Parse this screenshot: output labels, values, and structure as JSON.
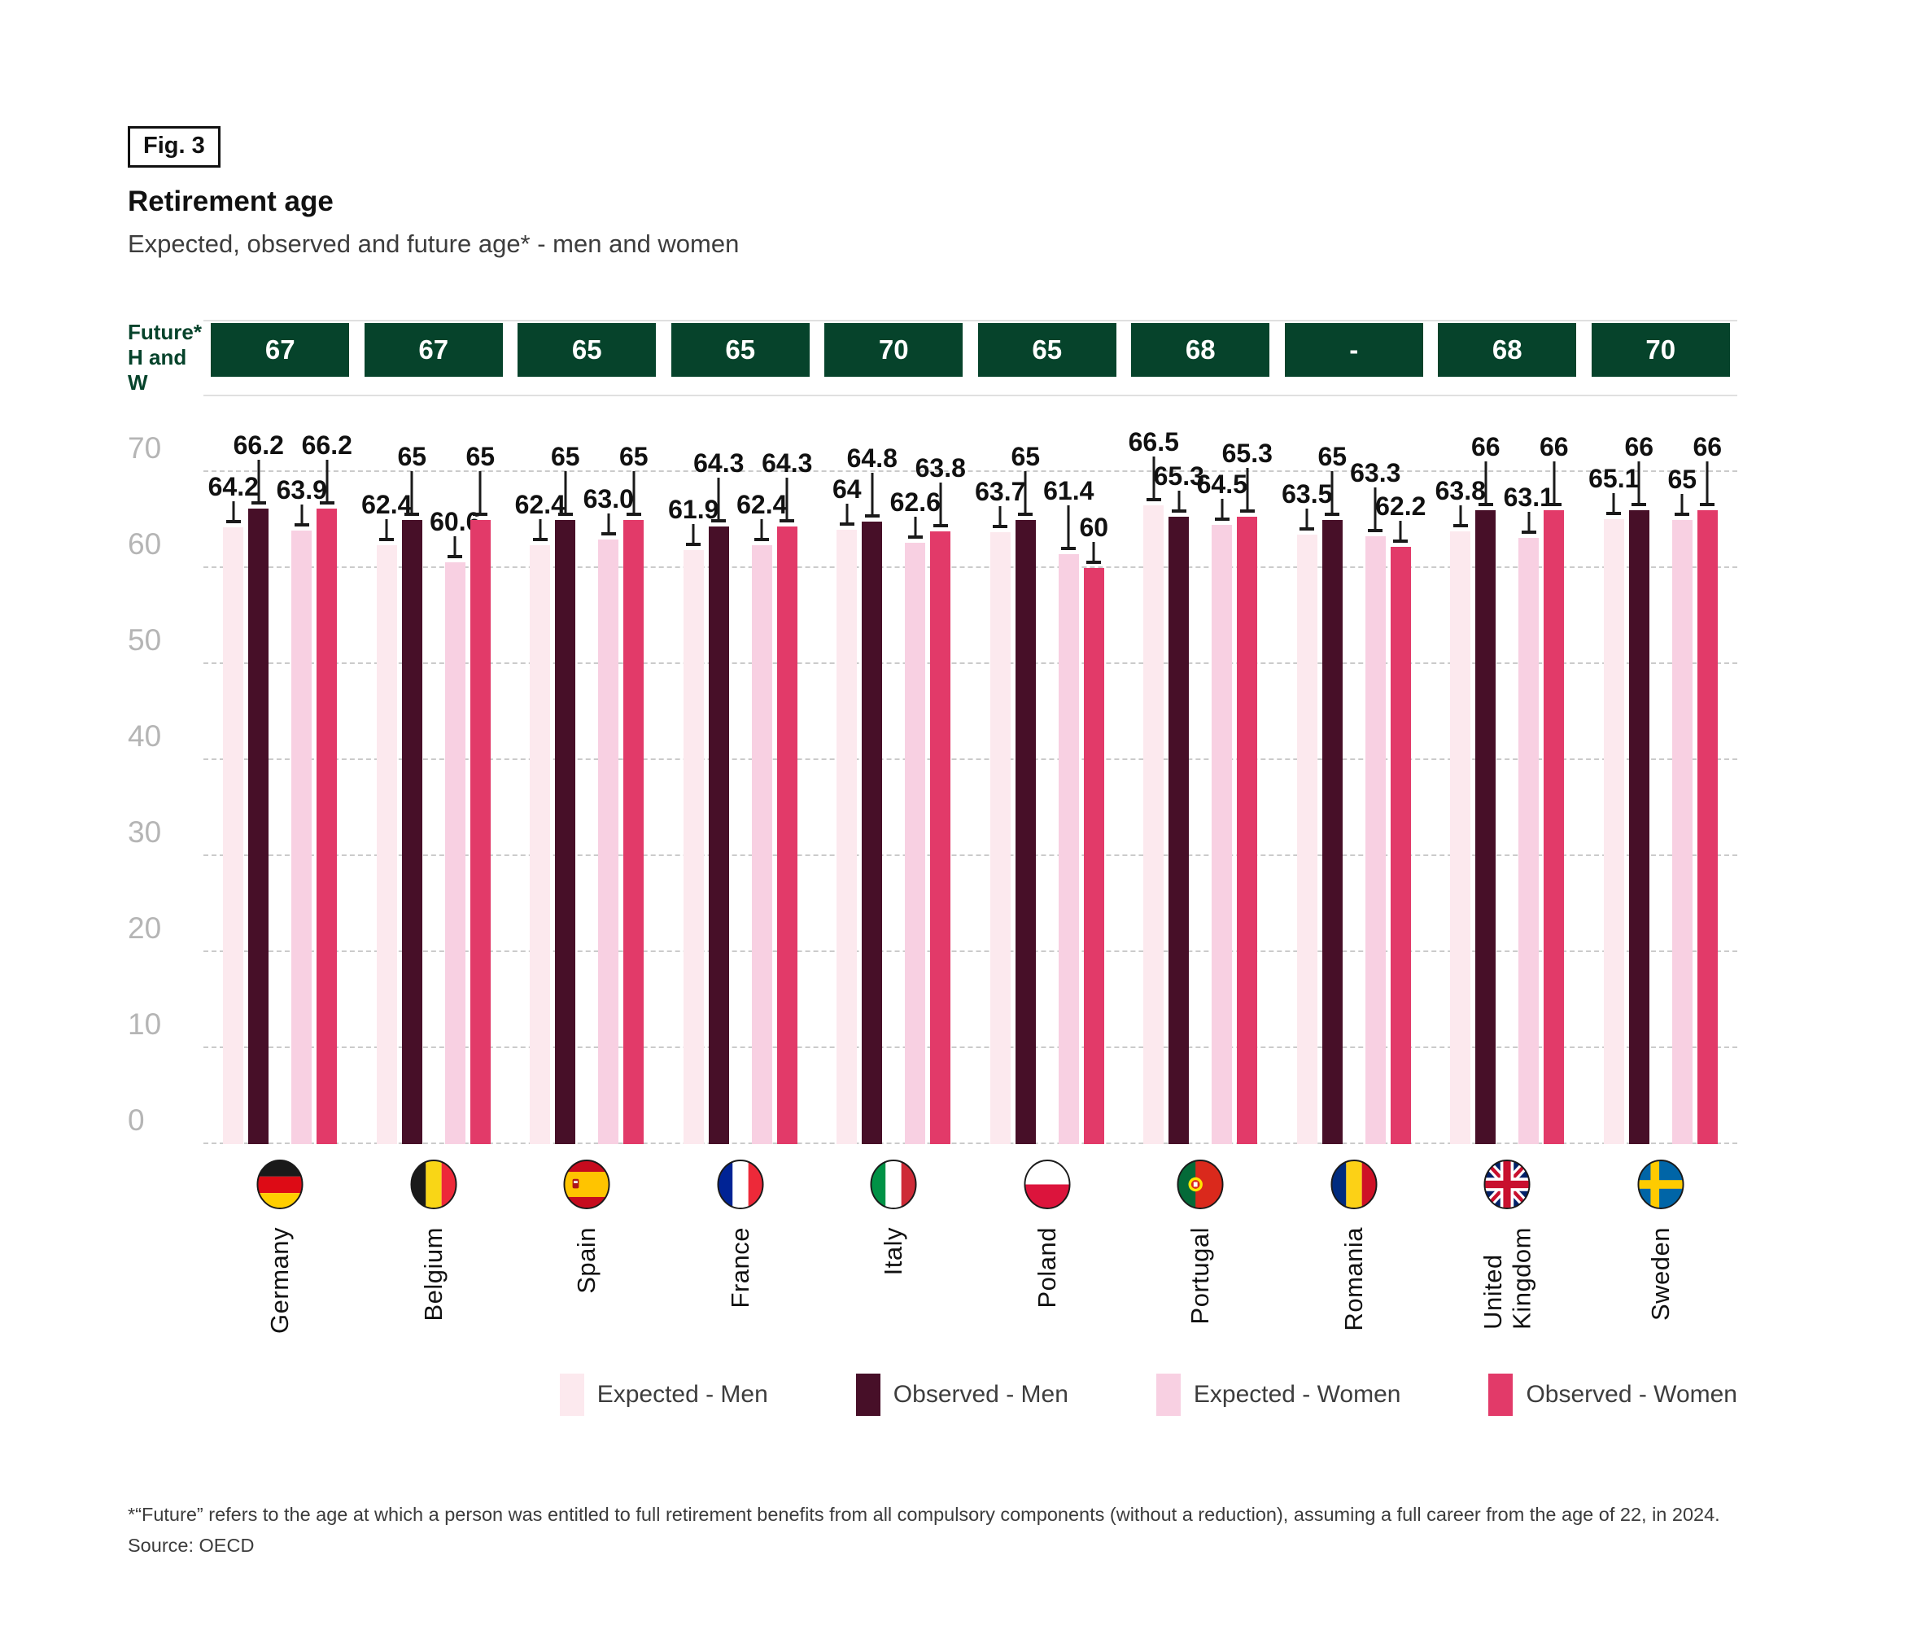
{
  "figure": {
    "tag": "Fig. 3",
    "title": "Retirement age",
    "subtitle": "Expected, observed and future age* - men and women"
  },
  "future_row": {
    "label_line1": "Future*",
    "label_line2": "H and W",
    "box_color": "#06432b",
    "values": [
      "67",
      "67",
      "65",
      "65",
      "70",
      "65",
      "68",
      "-",
      "68",
      "70"
    ]
  },
  "chart_data": {
    "type": "bar",
    "title": "Retirement age",
    "subtitle": "Expected, observed and future age* - men and women",
    "xlabel": "",
    "ylabel": "",
    "ylim": [
      0,
      70
    ],
    "yticks": [
      0,
      10,
      20,
      30,
      40,
      50,
      60,
      70
    ],
    "grid": "horizontal-dashed",
    "legend_position": "bottom",
    "categories": [
      "Germany",
      "Belgium",
      "Spain",
      "France",
      "Italy",
      "Poland",
      "Portugal",
      "Romania",
      "United Kingdom",
      "Sweden"
    ],
    "future_h_and_w": [
      "67",
      "67",
      "65",
      "65",
      "70",
      "65",
      "68",
      "-",
      "68",
      "70"
    ],
    "series": [
      {
        "name": "Expected - Men",
        "color": "#fce9ee",
        "values": [
          64.2,
          62.4,
          62.4,
          61.9,
          64,
          63.7,
          66.5,
          63.5,
          63.8,
          65.1
        ],
        "labels": [
          "64.2",
          "62.4",
          "62.4",
          "61.9",
          "64",
          "63.7",
          "66.5",
          "63.5",
          "63.8",
          "65.1"
        ]
      },
      {
        "name": "Observed - Men",
        "color": "#470f28",
        "values": [
          66.2,
          65,
          65,
          64.3,
          64.8,
          65,
          65.3,
          65,
          66,
          66
        ],
        "labels": [
          "66.2",
          "65",
          "65",
          "64.3",
          "64.8",
          "65",
          "65.3",
          "65",
          "66",
          "66"
        ]
      },
      {
        "name": "Expected - Women",
        "color": "#f8d0e2",
        "values": [
          63.9,
          60.6,
          63.0,
          62.4,
          62.6,
          61.4,
          64.5,
          63.3,
          63.1,
          65
        ],
        "labels": [
          "63.9",
          "60.6",
          "63.0",
          "62.4",
          "62.6",
          "61.4",
          "64.5",
          "63.3",
          "63.1",
          "65"
        ]
      },
      {
        "name": "Observed - Women",
        "color": "#e23a69",
        "values": [
          66.2,
          65,
          65,
          64.3,
          63.8,
          60,
          65.3,
          62.2,
          66,
          66
        ],
        "labels": [
          "66.2",
          "65",
          "65",
          "64.3",
          "63.8",
          "60",
          "65.3",
          "62.2",
          "66",
          "66"
        ]
      }
    ]
  },
  "countries": [
    {
      "label": "Germany",
      "flag": "germany"
    },
    {
      "label": "Belgium",
      "flag": "belgium"
    },
    {
      "label": "Spain",
      "flag": "spain"
    },
    {
      "label": "France",
      "flag": "france"
    },
    {
      "label": "Italy",
      "flag": "italy"
    },
    {
      "label": "Poland",
      "flag": "poland"
    },
    {
      "label": "Portugal",
      "flag": "portugal"
    },
    {
      "label": "Romania",
      "flag": "romania"
    },
    {
      "label": "United\nKingdom",
      "flag": "uk"
    },
    {
      "label": "Sweden",
      "flag": "sweden"
    }
  ],
  "footnote": {
    "text": "*“Future” refers to the age at which a person was entitled to full retirement benefits from all compulsory components (without a reduction), assuming a full career from the age of 22, in 2024."
  },
  "source": {
    "text": "Source: OECD"
  }
}
